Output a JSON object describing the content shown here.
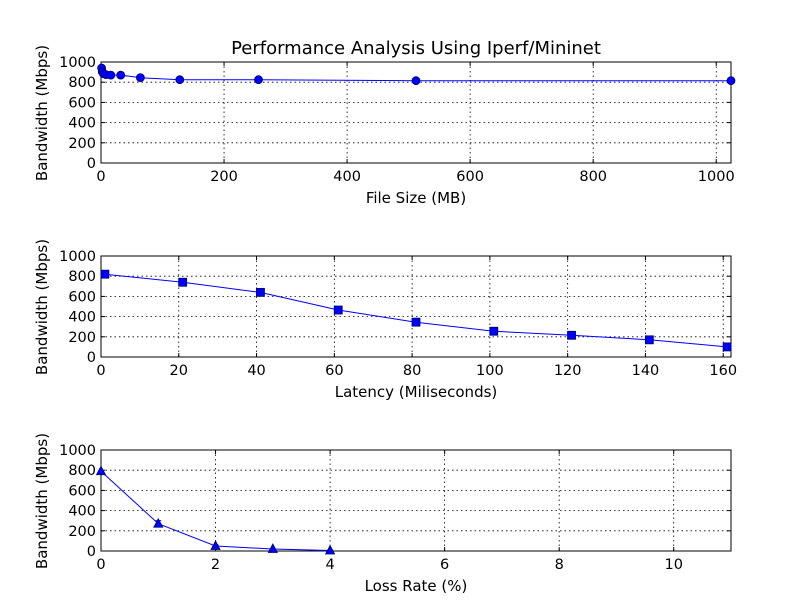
{
  "colors": {
    "series": "#0000FF",
    "marker_edge": "#000066"
  },
  "chart_data": [
    {
      "type": "line",
      "title": "Performance Analysis Using Iperf/Mininet",
      "xlabel": "File Size (MB)",
      "ylabel": "Bandwidth (Mbps)",
      "xlim": [
        0,
        1024
      ],
      "ylim": [
        0,
        1000
      ],
      "xticks": [
        0,
        200,
        400,
        600,
        800,
        1000
      ],
      "yticks": [
        0,
        200,
        400,
        600,
        800,
        1000
      ],
      "xtick_labels": [
        "0",
        "200",
        "400",
        "600",
        "800",
        "1000"
      ],
      "ytick_labels": [
        "0",
        "200",
        "400",
        "600",
        "800",
        "1000"
      ],
      "grid": true,
      "marker": "circle",
      "series": [
        {
          "x": [
            1,
            2,
            4,
            8,
            16,
            32,
            64,
            128,
            256,
            512,
            1024
          ],
          "y": [
            940,
            905,
            885,
            875,
            870,
            870,
            845,
            825,
            825,
            815,
            815
          ]
        }
      ]
    },
    {
      "type": "line",
      "title": "",
      "xlabel": "Latency (Miliseconds)",
      "ylabel": "Bandwidth (Mbps)",
      "xlim": [
        0,
        162
      ],
      "ylim": [
        0,
        1000
      ],
      "xticks": [
        0,
        20,
        40,
        60,
        80,
        100,
        120,
        140,
        160
      ],
      "yticks": [
        0,
        200,
        400,
        600,
        800,
        1000
      ],
      "xtick_labels": [
        "0",
        "20",
        "40",
        "60",
        "80",
        "100",
        "120",
        "140",
        "160"
      ],
      "ytick_labels": [
        "0",
        "200",
        "400",
        "600",
        "800",
        "1000"
      ],
      "grid": true,
      "marker": "square",
      "series": [
        {
          "x": [
            1,
            21,
            41,
            61,
            81,
            101,
            121,
            141,
            161
          ],
          "y": [
            820,
            740,
            640,
            465,
            345,
            255,
            215,
            170,
            100
          ]
        }
      ]
    },
    {
      "type": "line",
      "title": "",
      "xlabel": "Loss Rate (%)",
      "ylabel": "Bandwidth (Mbps)",
      "xlim": [
        0,
        11
      ],
      "ylim": [
        0,
        1000
      ],
      "xticks": [
        0,
        2,
        4,
        6,
        8,
        10
      ],
      "yticks": [
        0,
        200,
        400,
        600,
        800,
        1000
      ],
      "xtick_labels": [
        "0",
        "2",
        "4",
        "6",
        "8",
        "10"
      ],
      "ytick_labels": [
        "0",
        "200",
        "400",
        "600",
        "800",
        "1000"
      ],
      "grid": true,
      "marker": "triangle",
      "series": [
        {
          "x": [
            0,
            1,
            2,
            3,
            4
          ],
          "y": [
            790,
            270,
            50,
            20,
            5
          ],
          "yerr": [
            0,
            30,
            10,
            0,
            0
          ]
        }
      ]
    }
  ]
}
